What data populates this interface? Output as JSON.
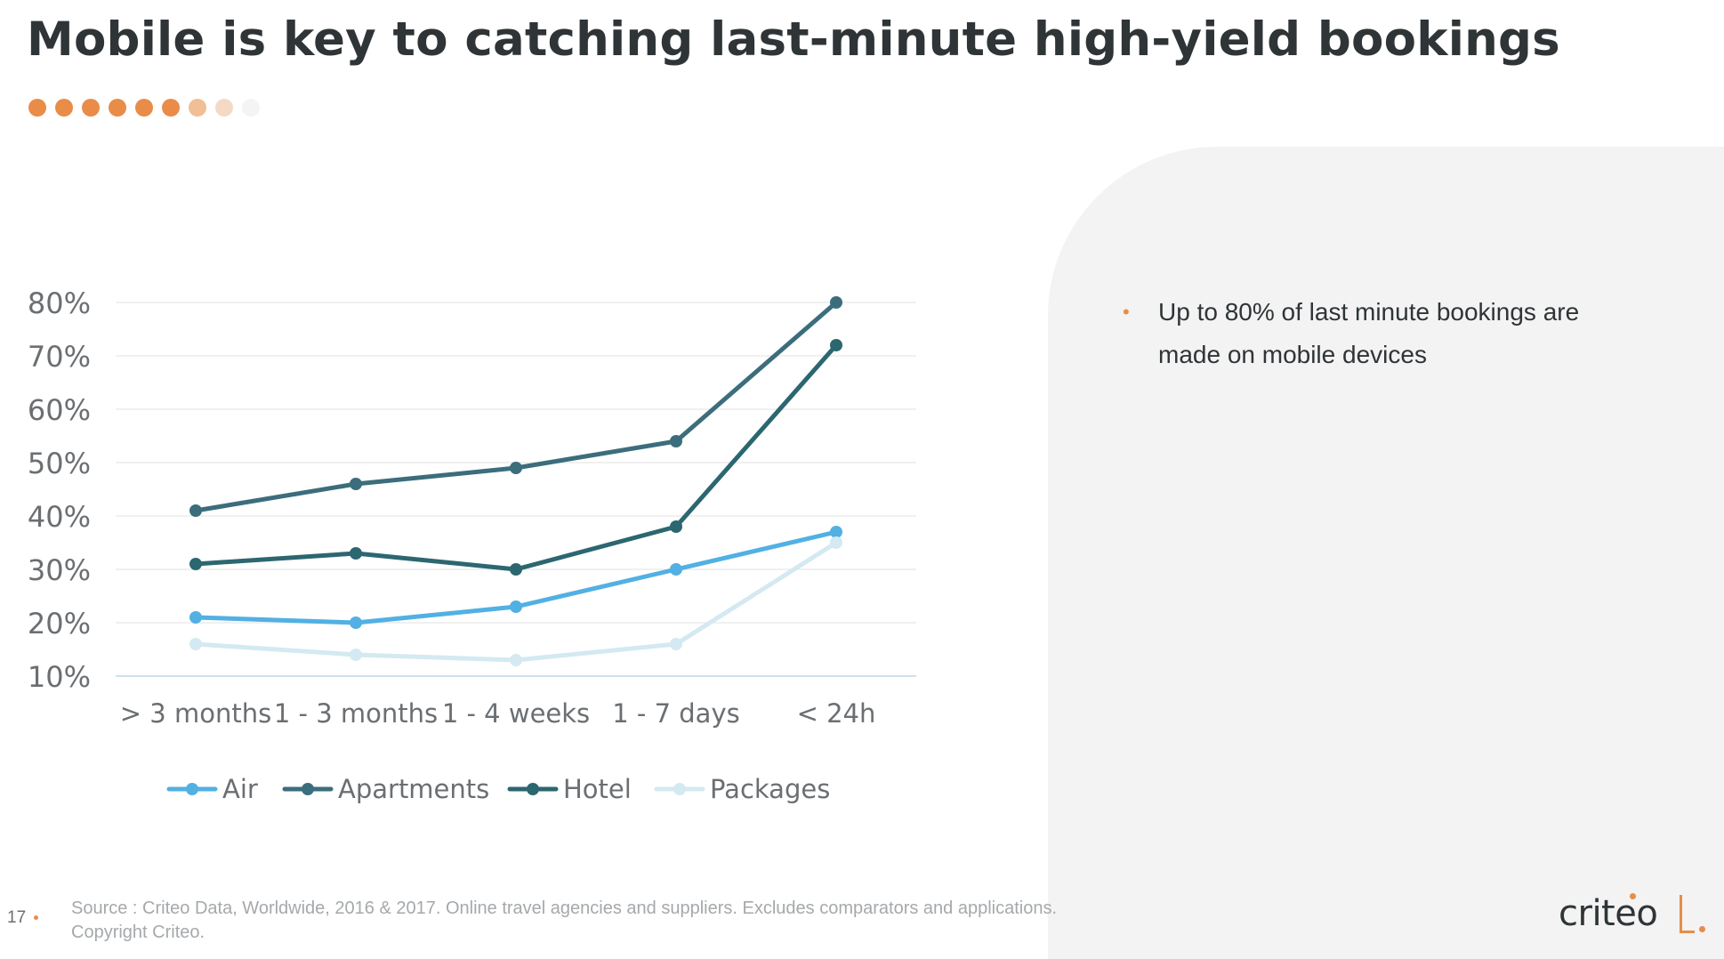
{
  "header": {
    "title": "Mobile is key to catching last-minute high-yield bookings",
    "dot_colors": [
      "#e88c48",
      "#e88c48",
      "#e88c48",
      "#e88c48",
      "#e88c48",
      "#e88c48",
      "#f0bf96",
      "#f4dac6",
      "#f4f4f4"
    ]
  },
  "chart_data": {
    "type": "line",
    "categories": [
      "> 3 months",
      "1 - 3 months",
      "1 - 4 weeks",
      "1 - 7 days",
      "< 24h"
    ],
    "series": [
      {
        "name": "Air",
        "color": "#52b0e3",
        "values": [
          21,
          20,
          23,
          30,
          37
        ]
      },
      {
        "name": "Apartments",
        "color": "#3c6d7c",
        "values": [
          41,
          46,
          49,
          54,
          80
        ]
      },
      {
        "name": "Hotel",
        "color": "#2c6770",
        "values": [
          31,
          33,
          30,
          38,
          72
        ]
      },
      {
        "name": "Packages",
        "color": "#d4e9f1",
        "values": [
          16,
          14,
          13,
          16,
          35
        ]
      }
    ],
    "yticks": [
      "10%",
      "20%",
      "30%",
      "40%",
      "50%",
      "60%",
      "70%",
      "80%"
    ],
    "ylim": [
      10,
      80
    ],
    "grid": true,
    "legend": "bottom"
  },
  "bullets": [
    {
      "text": "Up to 80% of last minute bookings are made on mobile devices"
    }
  ],
  "footer": {
    "page_number": "17",
    "source_line1": "Source : Criteo Data, Worldwide, 2016 & 2017. Online travel agencies and suppliers. Excludes comparators and applications.",
    "source_line2": "Copyright Criteo.",
    "logo_text": "criteo"
  },
  "colors": {
    "accent": "#e88c48",
    "title": "#2f3437",
    "panel": "#f2f3f2",
    "axis_text": "#6b6f72"
  }
}
